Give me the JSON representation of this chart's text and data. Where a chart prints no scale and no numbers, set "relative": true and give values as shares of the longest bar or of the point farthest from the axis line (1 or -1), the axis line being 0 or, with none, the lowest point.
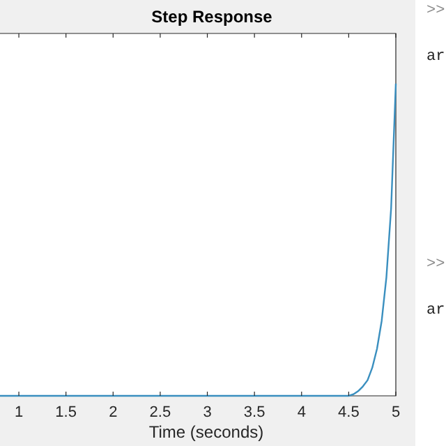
{
  "chart_data": {
    "type": "line",
    "title": "Step Response",
    "xlabel": "Time (seconds)",
    "relative": true,
    "xlim": [
      0.8,
      5
    ],
    "xticks": [
      1,
      1.5,
      2,
      2.5,
      3,
      3.5,
      4,
      4.5,
      5
    ],
    "grid": false,
    "marker": "none",
    "line_style": "solid",
    "series": [
      {
        "color": "#3a8fbf",
        "x": [
          0.8,
          4.5,
          4.55,
          4.6,
          4.65,
          4.7,
          4.75,
          4.8,
          4.85,
          4.9,
          4.95,
          5
        ],
        "values": [
          0,
          0,
          0.005,
          0.015,
          0.03,
          0.05,
          0.09,
          0.15,
          0.24,
          0.38,
          0.6,
          1
        ]
      }
    ],
    "annotations": [
      ">>",
      "ar",
      ">>",
      "ar"
    ]
  }
}
